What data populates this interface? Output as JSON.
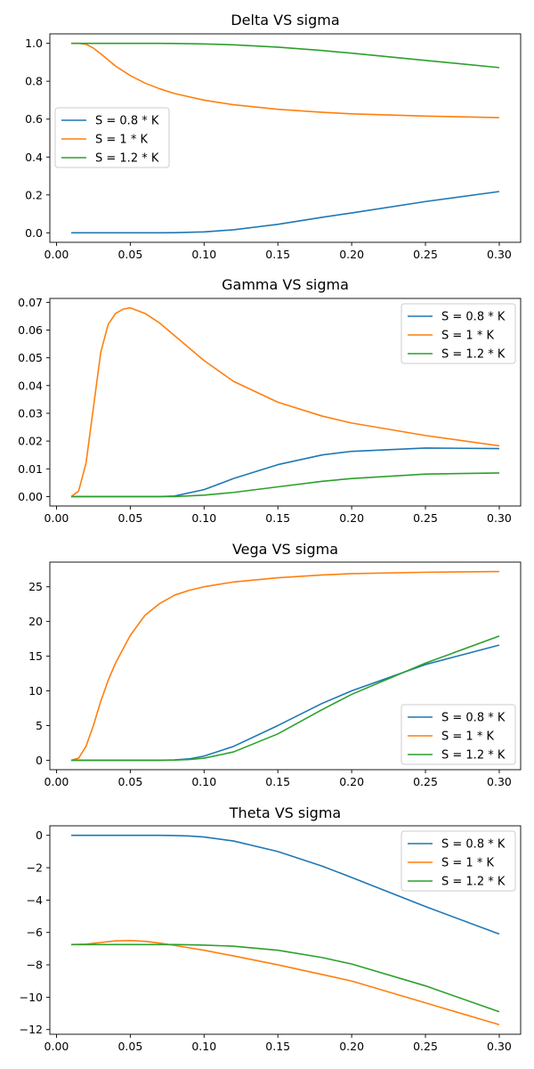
{
  "colors": {
    "series_0.8": "#1f77b4",
    "series_1.0": "#ff7f0e",
    "series_1.2": "#2ca02c"
  },
  "chart_data": [
    {
      "type": "line",
      "title": "Delta VS sigma",
      "xlabel": "",
      "ylabel": "",
      "xlim": [
        -0.0045,
        0.3145
      ],
      "ylim": [
        -0.05,
        1.05
      ],
      "grid": false,
      "legend": "center-left",
      "xticks": [
        "0.00",
        "0.05",
        "0.10",
        "0.15",
        "0.20",
        "0.25",
        "0.30"
      ],
      "yticks": [
        "0.0",
        "0.2",
        "0.4",
        "0.6",
        "0.8",
        "1.0"
      ],
      "x": [
        0.01,
        0.015,
        0.02,
        0.025,
        0.03,
        0.04,
        0.05,
        0.06,
        0.07,
        0.08,
        0.1,
        0.12,
        0.15,
        0.18,
        0.2,
        0.25,
        0.3
      ],
      "series": [
        {
          "name": "S = 0.8 * K",
          "color": "#1f77b4",
          "values": [
            0.0,
            0.0,
            0.0,
            0.0,
            0.0,
            0.0,
            0.0,
            0.0,
            0.0,
            0.001,
            0.005,
            0.016,
            0.045,
            0.082,
            0.105,
            0.165,
            0.218
          ]
        },
        {
          "name": "S = 1 * K",
          "color": "#ff7f0e",
          "values": [
            1.0,
            1.0,
            0.995,
            0.975,
            0.945,
            0.88,
            0.83,
            0.79,
            0.76,
            0.735,
            0.7,
            0.676,
            0.652,
            0.636,
            0.628,
            0.616,
            0.608
          ]
        },
        {
          "name": "S = 1.2 * K",
          "color": "#2ca02c",
          "values": [
            1.0,
            1.0,
            1.0,
            1.0,
            1.0,
            1.0,
            1.0,
            1.0,
            1.0,
            0.999,
            0.997,
            0.992,
            0.98,
            0.962,
            0.948,
            0.91,
            0.872
          ]
        }
      ]
    },
    {
      "type": "line",
      "title": "Gamma VS sigma",
      "xlabel": "",
      "ylabel": "",
      "xlim": [
        -0.0045,
        0.3145
      ],
      "ylim": [
        -0.0034,
        0.0714
      ],
      "grid": false,
      "legend": "top-right",
      "xticks": [
        "0.00",
        "0.05",
        "0.10",
        "0.15",
        "0.20",
        "0.25",
        "0.30"
      ],
      "yticks": [
        "0.00",
        "0.01",
        "0.02",
        "0.03",
        "0.04",
        "0.05",
        "0.06",
        "0.07"
      ],
      "x": [
        0.01,
        0.015,
        0.02,
        0.025,
        0.03,
        0.035,
        0.04,
        0.045,
        0.05,
        0.06,
        0.07,
        0.08,
        0.1,
        0.12,
        0.15,
        0.18,
        0.2,
        0.25,
        0.3
      ],
      "series": [
        {
          "name": "S = 0.8 * K",
          "color": "#1f77b4",
          "values": [
            0.0,
            0.0,
            0.0,
            0.0,
            0.0,
            0.0,
            0.0,
            0.0,
            0.0,
            0.0,
            0.0,
            0.0002,
            0.0025,
            0.0065,
            0.0115,
            0.015,
            0.0163,
            0.0175,
            0.0173
          ]
        },
        {
          "name": "S = 1 * K",
          "color": "#ff7f0e",
          "values": [
            0.0,
            0.002,
            0.012,
            0.032,
            0.052,
            0.062,
            0.066,
            0.0675,
            0.068,
            0.066,
            0.0625,
            0.058,
            0.049,
            0.0415,
            0.034,
            0.029,
            0.0265,
            0.022,
            0.0183
          ]
        },
        {
          "name": "S = 1.2 * K",
          "color": "#2ca02c",
          "values": [
            0.0,
            0.0,
            0.0,
            0.0,
            0.0,
            0.0,
            0.0,
            0.0,
            0.0,
            0.0,
            0.0,
            0.0,
            0.0005,
            0.0015,
            0.0035,
            0.0055,
            0.0065,
            0.0081,
            0.0085
          ]
        }
      ]
    },
    {
      "type": "line",
      "title": "Vega VS sigma",
      "xlabel": "",
      "ylabel": "",
      "xlim": [
        -0.0045,
        0.3145
      ],
      "ylim": [
        -1.36,
        28.56
      ],
      "grid": false,
      "legend": "bottom-right",
      "xticks": [
        "0.00",
        "0.05",
        "0.10",
        "0.15",
        "0.20",
        "0.25",
        "0.30"
      ],
      "yticks": [
        "0",
        "5",
        "10",
        "15",
        "20",
        "25"
      ],
      "x": [
        0.01,
        0.015,
        0.02,
        0.025,
        0.03,
        0.035,
        0.04,
        0.05,
        0.06,
        0.07,
        0.08,
        0.09,
        0.1,
        0.12,
        0.15,
        0.18,
        0.2,
        0.25,
        0.3
      ],
      "series": [
        {
          "name": "S = 0.8 * K",
          "color": "#1f77b4",
          "values": [
            0.0,
            0.0,
            0.0,
            0.0,
            0.0,
            0.0,
            0.0,
            0.0,
            0.0,
            0.0,
            0.05,
            0.2,
            0.6,
            2.0,
            5.0,
            8.2,
            10.0,
            13.8,
            16.6
          ]
        },
        {
          "name": "S = 1 * K",
          "color": "#ff7f0e",
          "values": [
            0.0,
            0.3,
            2.0,
            5.0,
            8.5,
            11.5,
            14.0,
            18.0,
            20.9,
            22.6,
            23.8,
            24.5,
            25.0,
            25.7,
            26.3,
            26.7,
            26.9,
            27.1,
            27.2
          ]
        },
        {
          "name": "S = 1.2 * K",
          "color": "#2ca02c",
          "values": [
            0.0,
            0.0,
            0.0,
            0.0,
            0.0,
            0.0,
            0.0,
            0.0,
            0.0,
            0.0,
            0.02,
            0.1,
            0.3,
            1.2,
            3.8,
            7.3,
            9.5,
            14.0,
            17.9
          ]
        }
      ]
    },
    {
      "type": "line",
      "title": "Theta VS sigma",
      "xlabel": "",
      "ylabel": "",
      "xlim": [
        -0.0045,
        0.3145
      ],
      "ylim": [
        -12.29,
        0.59
      ],
      "grid": false,
      "legend": "top-right",
      "xticks": [
        "0.00",
        "0.05",
        "0.10",
        "0.15",
        "0.20",
        "0.25",
        "0.30"
      ],
      "yticks": [
        "0",
        "−2",
        "−4",
        "−6",
        "−8",
        "−10",
        "−12"
      ],
      "x": [
        0.01,
        0.02,
        0.03,
        0.04,
        0.05,
        0.06,
        0.07,
        0.08,
        0.09,
        0.1,
        0.12,
        0.15,
        0.18,
        0.2,
        0.25,
        0.3
      ],
      "series": [
        {
          "name": "S = 0.8 * K",
          "color": "#1f77b4",
          "values": [
            0.0,
            0.0,
            0.0,
            0.0,
            0.0,
            0.0,
            0.0,
            -0.01,
            -0.04,
            -0.1,
            -0.35,
            -1.0,
            -1.9,
            -2.6,
            -4.4,
            -6.1
          ]
        },
        {
          "name": "S = 1 * K",
          "color": "#ff7f0e",
          "values": [
            -6.75,
            -6.72,
            -6.62,
            -6.52,
            -6.5,
            -6.55,
            -6.66,
            -6.8,
            -6.95,
            -7.1,
            -7.45,
            -8.0,
            -8.6,
            -9.0,
            -10.35,
            -11.7
          ]
        },
        {
          "name": "S = 1.2 * K",
          "color": "#2ca02c",
          "values": [
            -6.75,
            -6.75,
            -6.75,
            -6.75,
            -6.75,
            -6.75,
            -6.75,
            -6.75,
            -6.76,
            -6.78,
            -6.85,
            -7.1,
            -7.55,
            -7.95,
            -9.3,
            -10.9
          ]
        }
      ]
    }
  ]
}
